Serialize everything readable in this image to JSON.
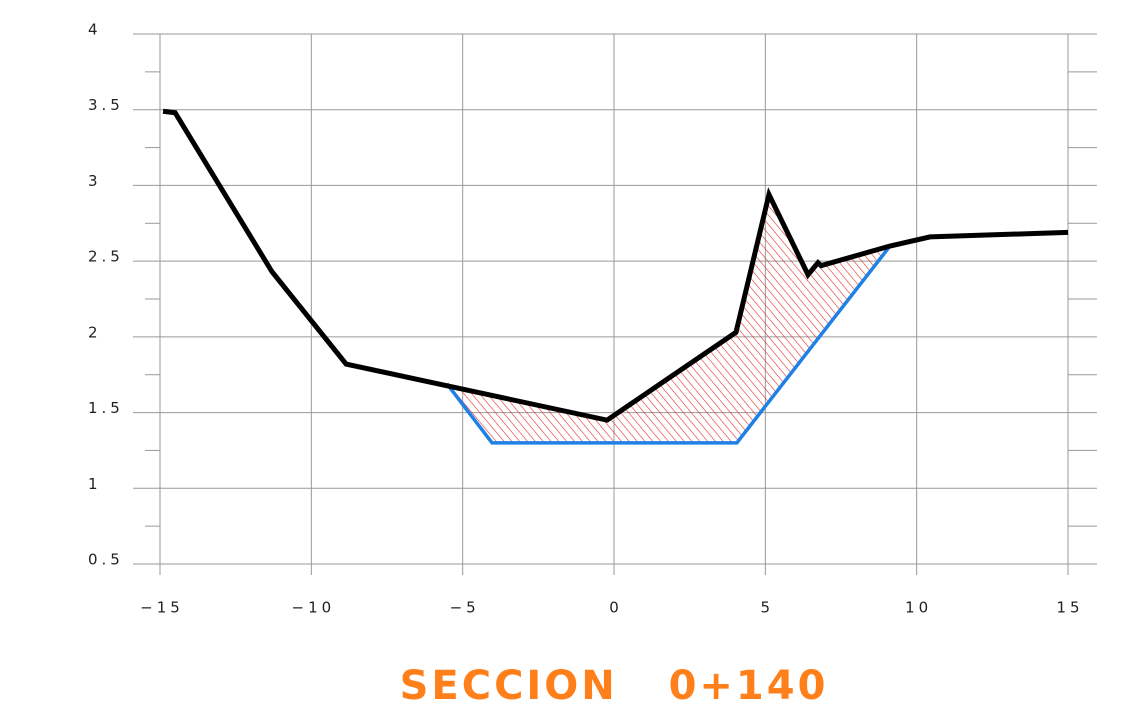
{
  "chart_data": {
    "type": "line",
    "title": "SECCION   0+140",
    "xlim": [
      -15,
      15
    ],
    "ylim": [
      0.5,
      4
    ],
    "xticks": [
      {
        "value": -15,
        "label": "−15"
      },
      {
        "value": -10,
        "label": "−10"
      },
      {
        "value": -5,
        "label": "−5"
      },
      0,
      5,
      10,
      15
    ],
    "yticks": [
      {
        "value": 0.5,
        "label": "0.5"
      },
      1,
      {
        "value": 1.5,
        "label": "1.5"
      },
      2,
      {
        "value": 2.5,
        "label": "2.5"
      },
      3,
      {
        "value": 3.5,
        "label": "3.5"
      },
      4
    ],
    "grid": true,
    "series": [
      {
        "color": "#000000",
        "x": [
          -14.9,
          -14.5,
          -11.3,
          -8.85,
          -0.23,
          4.03,
          5.12,
          6.41,
          6.74,
          6.84,
          9.12,
          10.44,
          15
        ],
        "values": [
          3.49,
          3.48,
          2.43,
          1.82,
          1.45,
          2.03,
          2.94,
          2.41,
          2.49,
          2.47,
          2.6,
          2.66,
          2.69
        ]
      },
      {
        "color": "#1f80e6",
        "x": [
          -5.52,
          -4.03,
          4.06,
          9.12
        ],
        "values": [
          1.69,
          1.3,
          1.3,
          2.6
        ]
      }
    ]
  }
}
